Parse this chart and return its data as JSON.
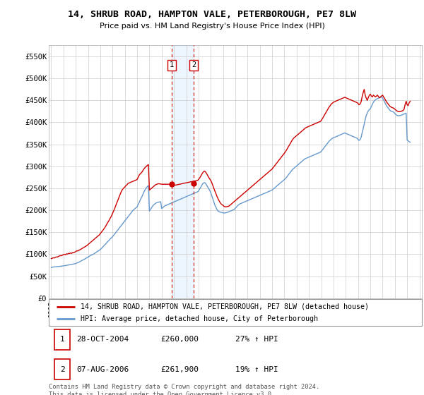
{
  "title": "14, SHRUB ROAD, HAMPTON VALE, PETERBOROUGH, PE7 8LW",
  "subtitle": "Price paid vs. HM Land Registry's House Price Index (HPI)",
  "red_label": "14, SHRUB ROAD, HAMPTON VALE, PETERBOROUGH, PE7 8LW (detached house)",
  "blue_label": "HPI: Average price, detached house, City of Peterborough",
  "footer": "Contains HM Land Registry data © Crown copyright and database right 2024.\nThis data is licensed under the Open Government Licence v3.0.",
  "transactions": [
    {
      "num": 1,
      "date": "28-OCT-2004",
      "price": "£260,000",
      "hpi": "27% ↑ HPI",
      "year": 2004.83
    },
    {
      "num": 2,
      "date": "07-AUG-2006",
      "price": "£261,900",
      "hpi": "19% ↑ HPI",
      "year": 2006.6
    }
  ],
  "red_color": "#cc0000",
  "blue_color": "#6699cc",
  "vline_color": "#cc0000",
  "shade_color": "#ddeeff",
  "ylim": [
    0,
    575000
  ],
  "xlim": [
    1994.8,
    2025.2
  ],
  "yticks": [
    0,
    50000,
    100000,
    150000,
    200000,
    250000,
    300000,
    350000,
    400000,
    450000,
    500000,
    550000
  ],
  "ytick_labels": [
    "£0",
    "£50K",
    "£100K",
    "£150K",
    "£200K",
    "£250K",
    "£300K",
    "£350K",
    "£400K",
    "£450K",
    "£500K",
    "£550K"
  ],
  "bg_color": "#ffffff",
  "grid_color": "#cccccc",
  "marker_box_color": "#cc0000",
  "hpi_x": [
    1995.0,
    1995.08,
    1995.17,
    1995.25,
    1995.33,
    1995.42,
    1995.5,
    1995.58,
    1995.67,
    1995.75,
    1995.83,
    1995.92,
    1996.0,
    1996.08,
    1996.17,
    1996.25,
    1996.33,
    1996.42,
    1996.5,
    1996.58,
    1996.67,
    1996.75,
    1996.83,
    1996.92,
    1997.0,
    1997.08,
    1997.17,
    1997.25,
    1997.33,
    1997.42,
    1997.5,
    1997.58,
    1997.67,
    1997.75,
    1997.83,
    1997.92,
    1998.0,
    1998.08,
    1998.17,
    1998.25,
    1998.33,
    1998.42,
    1998.5,
    1998.58,
    1998.67,
    1998.75,
    1998.83,
    1998.92,
    1999.0,
    1999.08,
    1999.17,
    1999.25,
    1999.33,
    1999.42,
    1999.5,
    1999.58,
    1999.67,
    1999.75,
    1999.83,
    1999.92,
    2000.0,
    2000.08,
    2000.17,
    2000.25,
    2000.33,
    2000.42,
    2000.5,
    2000.58,
    2000.67,
    2000.75,
    2000.83,
    2000.92,
    2001.0,
    2001.08,
    2001.17,
    2001.25,
    2001.33,
    2001.42,
    2001.5,
    2001.58,
    2001.67,
    2001.75,
    2001.83,
    2001.92,
    2002.0,
    2002.08,
    2002.17,
    2002.25,
    2002.33,
    2002.42,
    2002.5,
    2002.58,
    2002.67,
    2002.75,
    2002.83,
    2002.92,
    2003.0,
    2003.08,
    2003.17,
    2003.25,
    2003.33,
    2003.42,
    2003.5,
    2003.58,
    2003.67,
    2003.75,
    2003.83,
    2003.92,
    2004.0,
    2004.08,
    2004.17,
    2004.25,
    2004.33,
    2004.42,
    2004.5,
    2004.58,
    2004.67,
    2004.75,
    2004.83,
    2004.92,
    2005.0,
    2005.08,
    2005.17,
    2005.25,
    2005.33,
    2005.42,
    2005.5,
    2005.58,
    2005.67,
    2005.75,
    2005.83,
    2005.92,
    2006.0,
    2006.08,
    2006.17,
    2006.25,
    2006.33,
    2006.42,
    2006.5,
    2006.58,
    2006.67,
    2006.75,
    2006.83,
    2006.92,
    2007.0,
    2007.08,
    2007.17,
    2007.25,
    2007.33,
    2007.42,
    2007.5,
    2007.58,
    2007.67,
    2007.75,
    2007.83,
    2007.92,
    2008.0,
    2008.08,
    2008.17,
    2008.25,
    2008.33,
    2008.42,
    2008.5,
    2008.58,
    2008.67,
    2008.75,
    2008.83,
    2008.92,
    2009.0,
    2009.08,
    2009.17,
    2009.25,
    2009.33,
    2009.42,
    2009.5,
    2009.58,
    2009.67,
    2009.75,
    2009.83,
    2009.92,
    2010.0,
    2010.08,
    2010.17,
    2010.25,
    2010.33,
    2010.42,
    2010.5,
    2010.58,
    2010.67,
    2010.75,
    2010.83,
    2010.92,
    2011.0,
    2011.08,
    2011.17,
    2011.25,
    2011.33,
    2011.42,
    2011.5,
    2011.58,
    2011.67,
    2011.75,
    2011.83,
    2011.92,
    2012.0,
    2012.08,
    2012.17,
    2012.25,
    2012.33,
    2012.42,
    2012.5,
    2012.58,
    2012.67,
    2012.75,
    2012.83,
    2012.92,
    2013.0,
    2013.08,
    2013.17,
    2013.25,
    2013.33,
    2013.42,
    2013.5,
    2013.58,
    2013.67,
    2013.75,
    2013.83,
    2013.92,
    2014.0,
    2014.08,
    2014.17,
    2014.25,
    2014.33,
    2014.42,
    2014.5,
    2014.58,
    2014.67,
    2014.75,
    2014.83,
    2014.92,
    2015.0,
    2015.08,
    2015.17,
    2015.25,
    2015.33,
    2015.42,
    2015.5,
    2015.58,
    2015.67,
    2015.75,
    2015.83,
    2015.92,
    2016.0,
    2016.08,
    2016.17,
    2016.25,
    2016.33,
    2016.42,
    2016.5,
    2016.58,
    2016.67,
    2016.75,
    2016.83,
    2016.92,
    2017.0,
    2017.08,
    2017.17,
    2017.25,
    2017.33,
    2017.42,
    2017.5,
    2017.58,
    2017.67,
    2017.75,
    2017.83,
    2017.92,
    2018.0,
    2018.08,
    2018.17,
    2018.25,
    2018.33,
    2018.42,
    2018.5,
    2018.58,
    2018.67,
    2018.75,
    2018.83,
    2018.92,
    2019.0,
    2019.08,
    2019.17,
    2019.25,
    2019.33,
    2019.42,
    2019.5,
    2019.58,
    2019.67,
    2019.75,
    2019.83,
    2019.92,
    2020.0,
    2020.08,
    2020.17,
    2020.25,
    2020.33,
    2020.42,
    2020.5,
    2020.58,
    2020.67,
    2020.75,
    2020.83,
    2020.92,
    2021.0,
    2021.08,
    2021.17,
    2021.25,
    2021.33,
    2021.42,
    2021.5,
    2021.58,
    2021.67,
    2021.75,
    2021.83,
    2021.92,
    2022.0,
    2022.08,
    2022.17,
    2022.25,
    2022.33,
    2022.42,
    2022.5,
    2022.58,
    2022.67,
    2022.75,
    2022.83,
    2022.92,
    2023.0,
    2023.08,
    2023.17,
    2023.25,
    2023.33,
    2023.42,
    2023.5,
    2023.58,
    2023.67,
    2023.75,
    2023.83,
    2023.92,
    2024.0,
    2024.08,
    2024.17,
    2024.25
  ],
  "hpi_y": [
    70000,
    70500,
    71000,
    71200,
    71500,
    71800,
    72000,
    72300,
    72500,
    72700,
    73000,
    73300,
    73600,
    74000,
    74400,
    74800,
    75200,
    75600,
    76000,
    76500,
    77000,
    77500,
    78000,
    78500,
    79000,
    80000,
    81000,
    82000,
    83000,
    84500,
    86000,
    87000,
    88000,
    89500,
    91000,
    92500,
    93500,
    95000,
    96500,
    98000,
    99000,
    100000,
    101500,
    103000,
    104500,
    106000,
    107500,
    109000,
    111000,
    113000,
    115500,
    118000,
    120500,
    123000,
    125500,
    128000,
    130500,
    133000,
    135500,
    138000,
    140000,
    143000,
    146000,
    149000,
    152000,
    155000,
    158000,
    161000,
    164000,
    167000,
    170000,
    173000,
    176000,
    179000,
    182000,
    185000,
    188000,
    191000,
    194000,
    197000,
    200000,
    202000,
    204000,
    206000,
    208000,
    213000,
    218000,
    223000,
    228000,
    233000,
    238000,
    243000,
    248000,
    251000,
    254000,
    256000,
    198000,
    202000,
    206000,
    209000,
    212000,
    214000,
    216000,
    217000,
    218000,
    218500,
    219000,
    219500,
    204000,
    206000,
    208000,
    210000,
    211000,
    212000,
    213000,
    214000,
    215000,
    216000,
    217000,
    218000,
    219000,
    220000,
    221000,
    222000,
    223000,
    224000,
    225000,
    226000,
    227000,
    228000,
    229000,
    230000,
    231000,
    232000,
    233000,
    234000,
    235000,
    236000,
    237000,
    238000,
    239000,
    240000,
    241000,
    242000,
    244000,
    248000,
    252000,
    256000,
    260000,
    262000,
    263000,
    261000,
    257000,
    253000,
    249000,
    245000,
    240000,
    233000,
    226000,
    219000,
    212000,
    207000,
    202000,
    199000,
    197000,
    196000,
    195500,
    195000,
    194000,
    194000,
    194000,
    194500,
    195000,
    196000,
    197000,
    198000,
    199000,
    200000,
    201000,
    202000,
    205000,
    207000,
    210000,
    212000,
    214000,
    215000,
    216000,
    217000,
    218000,
    219000,
    220000,
    221000,
    222000,
    223000,
    224000,
    225000,
    226000,
    227000,
    228000,
    229000,
    230000,
    231000,
    232000,
    233000,
    234000,
    235000,
    236000,
    237000,
    238000,
    239000,
    240000,
    241000,
    242000,
    243000,
    244000,
    245000,
    246000,
    248000,
    250000,
    252000,
    254000,
    256000,
    258000,
    260000,
    262000,
    264000,
    266000,
    268000,
    270000,
    272000,
    275000,
    278000,
    281000,
    284000,
    287000,
    290000,
    293000,
    295000,
    297000,
    299000,
    301000,
    303000,
    305000,
    307000,
    309000,
    311000,
    313000,
    315000,
    317000,
    318000,
    319000,
    320000,
    321000,
    322000,
    323000,
    324000,
    325000,
    326000,
    327000,
    328000,
    329000,
    330000,
    331000,
    332000,
    334000,
    337000,
    340000,
    343000,
    346000,
    349000,
    352000,
    355000,
    358000,
    360000,
    362000,
    364000,
    365000,
    366000,
    367000,
    368000,
    369000,
    370000,
    371000,
    372000,
    373000,
    374000,
    375000,
    376000,
    375000,
    374000,
    373000,
    372000,
    371000,
    370000,
    369000,
    368000,
    367000,
    366000,
    365000,
    364000,
    361000,
    359000,
    361000,
    366000,
    376000,
    386000,
    396000,
    406000,
    416000,
    421000,
    426000,
    429000,
    431000,
    436000,
    441000,
    446000,
    449000,
    451000,
    453000,
    454000,
    455000,
    456000,
    457000,
    458000,
    455000,
    451000,
    446000,
    441000,
    437000,
    434000,
    431000,
    428000,
    426000,
    425000,
    424000,
    423000,
    420000,
    418000,
    416000,
    415000,
    415000,
    415500,
    416000,
    417000,
    418000,
    419000,
    420000,
    421000,
    360000,
    358000,
    356000,
    355000
  ],
  "red_x": [
    1995.0,
    1995.08,
    1995.17,
    1995.25,
    1995.33,
    1995.42,
    1995.5,
    1995.58,
    1995.67,
    1995.75,
    1995.83,
    1995.92,
    1996.0,
    1996.08,
    1996.17,
    1996.25,
    1996.33,
    1996.42,
    1996.5,
    1996.58,
    1996.67,
    1996.75,
    1996.83,
    1996.92,
    1997.0,
    1997.08,
    1997.17,
    1997.25,
    1997.33,
    1997.42,
    1997.5,
    1997.58,
    1997.67,
    1997.75,
    1997.83,
    1997.92,
    1998.0,
    1998.08,
    1998.17,
    1998.25,
    1998.33,
    1998.42,
    1998.5,
    1998.58,
    1998.67,
    1998.75,
    1998.83,
    1998.92,
    1999.0,
    1999.08,
    1999.17,
    1999.25,
    1999.33,
    1999.42,
    1999.5,
    1999.58,
    1999.67,
    1999.75,
    1999.83,
    1999.92,
    2000.0,
    2000.08,
    2000.17,
    2000.25,
    2000.33,
    2000.42,
    2000.5,
    2000.58,
    2000.67,
    2000.75,
    2000.83,
    2000.92,
    2001.0,
    2001.08,
    2001.17,
    2001.25,
    2001.33,
    2001.42,
    2001.5,
    2001.58,
    2001.67,
    2001.75,
    2001.83,
    2001.92,
    2002.0,
    2002.08,
    2002.17,
    2002.25,
    2002.33,
    2002.42,
    2002.5,
    2002.58,
    2002.67,
    2002.75,
    2002.83,
    2002.92,
    2003.0,
    2003.08,
    2003.17,
    2003.25,
    2003.33,
    2003.42,
    2003.5,
    2003.58,
    2003.67,
    2003.75,
    2003.83,
    2003.92,
    2004.0,
    2004.08,
    2004.17,
    2004.25,
    2004.33,
    2004.42,
    2004.5,
    2004.58,
    2004.67,
    2004.75,
    2004.83,
    2004.92,
    2005.0,
    2005.08,
    2005.17,
    2005.25,
    2005.33,
    2005.42,
    2005.5,
    2005.58,
    2005.67,
    2005.75,
    2005.83,
    2005.92,
    2006.0,
    2006.08,
    2006.17,
    2006.25,
    2006.33,
    2006.42,
    2006.5,
    2006.58,
    2006.67,
    2006.75,
    2006.83,
    2006.92,
    2007.0,
    2007.08,
    2007.17,
    2007.25,
    2007.33,
    2007.42,
    2007.5,
    2007.58,
    2007.67,
    2007.75,
    2007.83,
    2007.92,
    2008.0,
    2008.08,
    2008.17,
    2008.25,
    2008.33,
    2008.42,
    2008.5,
    2008.58,
    2008.67,
    2008.75,
    2008.83,
    2008.92,
    2009.0,
    2009.08,
    2009.17,
    2009.25,
    2009.33,
    2009.42,
    2009.5,
    2009.58,
    2009.67,
    2009.75,
    2009.83,
    2009.92,
    2010.0,
    2010.08,
    2010.17,
    2010.25,
    2010.33,
    2010.42,
    2010.5,
    2010.58,
    2010.67,
    2010.75,
    2010.83,
    2010.92,
    2011.0,
    2011.08,
    2011.17,
    2011.25,
    2011.33,
    2011.42,
    2011.5,
    2011.58,
    2011.67,
    2011.75,
    2011.83,
    2011.92,
    2012.0,
    2012.08,
    2012.17,
    2012.25,
    2012.33,
    2012.42,
    2012.5,
    2012.58,
    2012.67,
    2012.75,
    2012.83,
    2012.92,
    2013.0,
    2013.08,
    2013.17,
    2013.25,
    2013.33,
    2013.42,
    2013.5,
    2013.58,
    2013.67,
    2013.75,
    2013.83,
    2013.92,
    2014.0,
    2014.08,
    2014.17,
    2014.25,
    2014.33,
    2014.42,
    2014.5,
    2014.58,
    2014.67,
    2014.75,
    2014.83,
    2014.92,
    2015.0,
    2015.08,
    2015.17,
    2015.25,
    2015.33,
    2015.42,
    2015.5,
    2015.58,
    2015.67,
    2015.75,
    2015.83,
    2015.92,
    2016.0,
    2016.08,
    2016.17,
    2016.25,
    2016.33,
    2016.42,
    2016.5,
    2016.58,
    2016.67,
    2016.75,
    2016.83,
    2016.92,
    2017.0,
    2017.08,
    2017.17,
    2017.25,
    2017.33,
    2017.42,
    2017.5,
    2017.58,
    2017.67,
    2017.75,
    2017.83,
    2017.92,
    2018.0,
    2018.08,
    2018.17,
    2018.25,
    2018.33,
    2018.42,
    2018.5,
    2018.58,
    2018.67,
    2018.75,
    2018.83,
    2018.92,
    2019.0,
    2019.08,
    2019.17,
    2019.25,
    2019.33,
    2019.42,
    2019.5,
    2019.58,
    2019.67,
    2019.75,
    2019.83,
    2019.92,
    2020.0,
    2020.08,
    2020.17,
    2020.25,
    2020.33,
    2020.42,
    2020.5,
    2020.58,
    2020.67,
    2020.75,
    2020.83,
    2020.92,
    2021.0,
    2021.08,
    2021.17,
    2021.25,
    2021.33,
    2021.42,
    2021.5,
    2021.58,
    2021.67,
    2021.75,
    2021.83,
    2021.92,
    2022.0,
    2022.08,
    2022.17,
    2022.25,
    2022.33,
    2022.42,
    2022.5,
    2022.58,
    2022.67,
    2022.75,
    2022.83,
    2022.92,
    2023.0,
    2023.08,
    2023.17,
    2023.25,
    2023.33,
    2023.42,
    2023.5,
    2023.58,
    2023.67,
    2023.75,
    2023.83,
    2023.92,
    2024.0,
    2024.08,
    2024.17,
    2024.25
  ],
  "red_y": [
    90000,
    91000,
    92000,
    91500,
    93000,
    94000,
    93500,
    95000,
    96000,
    97000,
    96500,
    98000,
    99000,
    100000,
    99000,
    101000,
    100500,
    102000,
    101500,
    103000,
    102000,
    104000,
    103500,
    105000,
    106000,
    108000,
    107500,
    109000,
    110000,
    111500,
    113000,
    114000,
    115500,
    117000,
    118500,
    120000,
    122000,
    124000,
    126000,
    128000,
    130000,
    132000,
    134000,
    136000,
    138000,
    140000,
    142000,
    144000,
    147000,
    150000,
    153000,
    156000,
    159000,
    163000,
    167000,
    171000,
    175000,
    179000,
    183000,
    188000,
    193000,
    198000,
    204000,
    210000,
    216000,
    222000,
    228000,
    234000,
    240000,
    245000,
    248000,
    251000,
    253000,
    256000,
    258000,
    261000,
    262000,
    263000,
    264000,
    265000,
    266000,
    267000,
    268000,
    269000,
    270000,
    275000,
    280000,
    283000,
    285000,
    288000,
    292000,
    295000,
    298000,
    300000,
    302000,
    304000,
    246000,
    248000,
    250000,
    252000,
    254000,
    256000,
    258000,
    259000,
    260000,
    260500,
    260000,
    260000,
    259000,
    259500,
    259000,
    259500,
    259000,
    259500,
    259000,
    259500,
    259000,
    258500,
    258000,
    258000,
    257500,
    257000,
    257500,
    258000,
    258500,
    259000,
    259500,
    260000,
    260500,
    261000,
    261900,
    262000,
    262500,
    263000,
    263500,
    264000,
    264500,
    265000,
    265500,
    266000,
    266500,
    267000,
    267500,
    268000,
    270000,
    273000,
    277000,
    281000,
    285000,
    288000,
    289000,
    287000,
    283000,
    279000,
    275000,
    271000,
    268000,
    263000,
    256000,
    250000,
    244000,
    238000,
    232000,
    227000,
    222000,
    218000,
    215000,
    213000,
    211000,
    209000,
    208000,
    208000,
    208500,
    209000,
    210000,
    212000,
    214000,
    216000,
    218000,
    220000,
    222000,
    224000,
    226000,
    228000,
    230000,
    232000,
    234000,
    236000,
    238000,
    240000,
    242000,
    244000,
    246000,
    248000,
    250000,
    252000,
    254000,
    256000,
    258000,
    260000,
    262000,
    264000,
    266000,
    268000,
    270000,
    272000,
    274000,
    276000,
    278000,
    280000,
    282000,
    284000,
    286000,
    288000,
    290000,
    292000,
    294000,
    297000,
    300000,
    303000,
    306000,
    309000,
    312000,
    315000,
    318000,
    321000,
    324000,
    327000,
    330000,
    333000,
    337000,
    341000,
    345000,
    349000,
    353000,
    357000,
    361000,
    364000,
    366000,
    368000,
    370000,
    372000,
    374000,
    376000,
    378000,
    380000,
    382000,
    384000,
    386000,
    388000,
    389000,
    390000,
    391000,
    392000,
    393000,
    394000,
    395000,
    396000,
    397000,
    398000,
    399000,
    400000,
    401000,
    402000,
    404000,
    408000,
    412000,
    416000,
    420000,
    424000,
    428000,
    432000,
    436000,
    439000,
    442000,
    444000,
    446000,
    447000,
    448000,
    449000,
    450000,
    451000,
    452000,
    453000,
    454000,
    455000,
    456000,
    457000,
    456000,
    455000,
    454000,
    453000,
    452000,
    451000,
    450000,
    449000,
    448000,
    447000,
    446000,
    445000,
    443000,
    440000,
    442000,
    447000,
    458000,
    468000,
    475000,
    462000,
    455000,
    450000,
    456000,
    462000,
    464000,
    460000,
    458000,
    462000,
    460000,
    458000,
    460000,
    462000,
    458000,
    456000,
    458000,
    460000,
    462000,
    458000,
    454000,
    450000,
    446000,
    443000,
    440000,
    437000,
    435000,
    434000,
    433000,
    432000,
    430000,
    428000,
    426000,
    425000,
    424000,
    424500,
    425000,
    426000,
    427000,
    430000,
    440000,
    448000,
    440000,
    438000,
    445000,
    448000
  ]
}
